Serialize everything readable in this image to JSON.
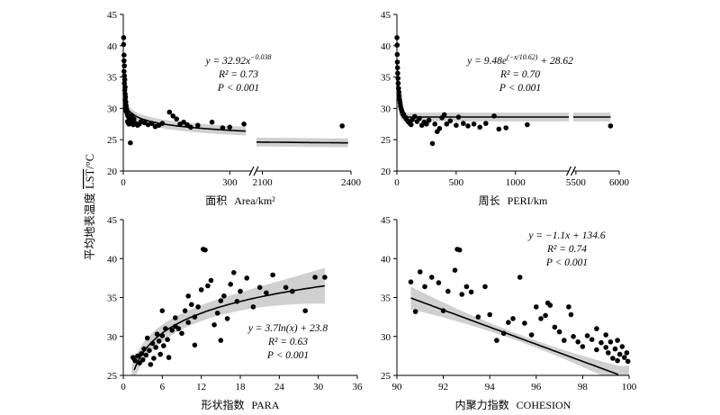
{
  "ylabel_shared": "平均地表温度 LST/°C",
  "ylabel_parts": {
    "cn": "平均地表温度",
    "var": "LST",
    "unit": "/°C"
  },
  "chart_data": [
    {
      "id": "area",
      "type": "scatter",
      "xlabel_cn": "面积",
      "xlabel_en": "Area/km²",
      "xlabel": "面积 Area/km²",
      "broken_x": true,
      "segments": [
        {
          "range": [
            0,
            360
          ],
          "ticks": [
            0,
            300
          ]
        },
        {
          "range": [
            2080,
            2400
          ],
          "ticks": [
            2100,
            2400
          ]
        }
      ],
      "ylim": [
        20,
        45
      ],
      "yticks": [
        20,
        25,
        30,
        35,
        40,
        45
      ],
      "xtick_labels": [
        "0",
        "300",
        "2100",
        "2400"
      ],
      "annotation": [
        "y = 32.92x^−0.038",
        "R² = 0.73",
        "P < 0.001"
      ],
      "fit": {
        "model": "power",
        "a": 32.92,
        "b": -0.038
      },
      "points": [
        [
          1,
          41.3
        ],
        [
          1,
          40.2
        ],
        [
          2,
          38.5
        ],
        [
          2,
          37.6
        ],
        [
          3,
          36.8
        ],
        [
          2,
          35.9
        ],
        [
          3,
          35.2
        ],
        [
          4,
          34.6
        ],
        [
          3,
          34.0
        ],
        [
          5,
          33.4
        ],
        [
          4,
          32.9
        ],
        [
          5,
          32.3
        ],
        [
          6,
          31.8
        ],
        [
          5,
          31.4
        ],
        [
          7,
          31.0
        ],
        [
          6,
          30.7
        ],
        [
          8,
          30.4
        ],
        [
          7,
          30.1
        ],
        [
          9,
          29.9
        ],
        [
          8,
          29.6
        ],
        [
          10,
          29.4
        ],
        [
          11,
          29.2
        ],
        [
          12,
          29.0
        ],
        [
          13,
          28.8
        ],
        [
          15,
          28.6
        ],
        [
          17,
          28.4
        ],
        [
          18,
          28.2
        ],
        [
          20,
          28.0
        ],
        [
          22,
          27.8
        ],
        [
          25,
          27.6
        ],
        [
          28,
          27.4
        ],
        [
          14,
          27.7
        ],
        [
          16,
          27.5
        ],
        [
          12,
          27.9
        ],
        [
          24,
          28.9
        ],
        [
          30,
          28.3
        ],
        [
          35,
          27.6
        ],
        [
          40,
          27.3
        ],
        [
          45,
          27.5
        ],
        [
          50,
          27.9
        ],
        [
          60,
          27.7
        ],
        [
          70,
          27.4
        ],
        [
          80,
          27.6
        ],
        [
          90,
          27.1
        ],
        [
          100,
          27.3
        ],
        [
          110,
          27.6
        ],
        [
          130,
          29.4
        ],
        [
          140,
          28.8
        ],
        [
          150,
          28.3
        ],
        [
          160,
          27.5
        ],
        [
          170,
          27.8
        ],
        [
          180,
          27.4
        ],
        [
          190,
          27.0
        ],
        [
          210,
          27.3
        ],
        [
          250,
          27.8
        ],
        [
          280,
          26.9
        ],
        [
          300,
          27.0
        ],
        [
          340,
          27.5
        ],
        [
          20,
          24.5
        ],
        [
          2370,
          27.2
        ]
      ]
    },
    {
      "id": "peri",
      "type": "scatter",
      "xlabel_cn": "周长",
      "xlabel_en": "PERI/km",
      "xlabel": "周长 PERI/km",
      "broken_x": true,
      "segments": [
        {
          "range": [
            0,
            1450
          ],
          "ticks": [
            0,
            500,
            1000
          ]
        },
        {
          "range": [
            5470,
            6000
          ],
          "ticks": [
            5500,
            6000
          ]
        }
      ],
      "ylim": [
        20,
        45
      ],
      "yticks": [
        20,
        25,
        30,
        35,
        40,
        45
      ],
      "xtick_labels": [
        "0",
        "500",
        "1000",
        "5500",
        "6000"
      ],
      "annotation": [
        "y = 9.48e^(−x/10.62) + 28.62",
        "R² = 0.70",
        "P < 0.001"
      ],
      "fit": {
        "model": "exponential",
        "a": 9.48,
        "b": 10.62,
        "c": 28.62
      },
      "points": [
        [
          1,
          41.3
        ],
        [
          2,
          40.1
        ],
        [
          3,
          38.6
        ],
        [
          4,
          37.4
        ],
        [
          5,
          36.5
        ],
        [
          7,
          35.6
        ],
        [
          9,
          34.8
        ],
        [
          11,
          34.0
        ],
        [
          14,
          33.2
        ],
        [
          17,
          32.6
        ],
        [
          20,
          32.0
        ],
        [
          23,
          31.4
        ],
        [
          27,
          30.9
        ],
        [
          30,
          30.4
        ],
        [
          35,
          30.0
        ],
        [
          40,
          29.7
        ],
        [
          45,
          29.4
        ],
        [
          55,
          29.1
        ],
        [
          60,
          28.8
        ],
        [
          70,
          28.6
        ],
        [
          80,
          28.3
        ],
        [
          90,
          28.0
        ],
        [
          100,
          27.8
        ],
        [
          110,
          27.6
        ],
        [
          120,
          27.4
        ],
        [
          130,
          28.2
        ],
        [
          150,
          28.7
        ],
        [
          170,
          27.9
        ],
        [
          190,
          28.4
        ],
        [
          210,
          27.3
        ],
        [
          230,
          27.8
        ],
        [
          250,
          27.5
        ],
        [
          270,
          28.1
        ],
        [
          300,
          24.4
        ],
        [
          320,
          27.5
        ],
        [
          340,
          26.3
        ],
        [
          360,
          26.8
        ],
        [
          380,
          28.5
        ],
        [
          400,
          29.0
        ],
        [
          420,
          27.5
        ],
        [
          450,
          28.0
        ],
        [
          500,
          27.3
        ],
        [
          520,
          28.6
        ],
        [
          560,
          27.6
        ],
        [
          600,
          27.2
        ],
        [
          650,
          27.5
        ],
        [
          700,
          27.0
        ],
        [
          750,
          27.6
        ],
        [
          820,
          28.8
        ],
        [
          860,
          26.7
        ],
        [
          920,
          26.9
        ],
        [
          1100,
          27.4
        ],
        [
          5900,
          27.2
        ]
      ]
    },
    {
      "id": "para",
      "type": "scatter",
      "xlabel_cn": "形状指数",
      "xlabel_en": "PARA",
      "xlabel": "形状指数 PARA",
      "xlim": [
        0,
        36
      ],
      "xticks": [
        0,
        6,
        12,
        18,
        24,
        30,
        36
      ],
      "ylim": [
        25,
        45
      ],
      "yticks": [
        25,
        30,
        35,
        40,
        45
      ],
      "annotation": [
        "y = 3.7ln(x) + 23.8",
        "R² = 0.63",
        "P < 0.001"
      ],
      "fit": {
        "model": "log",
        "a": 3.7,
        "b": 23.8
      },
      "points": [
        [
          1.5,
          27.3
        ],
        [
          1.8,
          26.9
        ],
        [
          2.2,
          27.5
        ],
        [
          2.5,
          26.6
        ],
        [
          2.8,
          27.8
        ],
        [
          3.0,
          27.0
        ],
        [
          3.2,
          28.4
        ],
        [
          3.5,
          27.6
        ],
        [
          3.7,
          29.8
        ],
        [
          4.0,
          28.2
        ],
        [
          4.2,
          26.4
        ],
        [
          4.5,
          29.1
        ],
        [
          4.7,
          27.2
        ],
        [
          5.0,
          28.6
        ],
        [
          5.2,
          30.3
        ],
        [
          5.5,
          29.4
        ],
        [
          5.7,
          27.7
        ],
        [
          6.0,
          30.1
        ],
        [
          6.2,
          28.8
        ],
        [
          6.5,
          31.0
        ],
        [
          6.8,
          29.6
        ],
        [
          7.0,
          27.3
        ],
        [
          7.5,
          30.8
        ],
        [
          8.0,
          32.4
        ],
        [
          8.5,
          31.0
        ],
        [
          9.0,
          30.4
        ],
        [
          9.5,
          33.3
        ],
        [
          10.0,
          31.8
        ],
        [
          10.5,
          34.1
        ],
        [
          11.0,
          32.5
        ],
        [
          11.5,
          33.8
        ],
        [
          12.0,
          36.0
        ],
        [
          12.3,
          41.2
        ],
        [
          12.6,
          41.1
        ],
        [
          13.0,
          36.5
        ],
        [
          13.5,
          37.2
        ],
        [
          14.0,
          31.5
        ],
        [
          14.5,
          33.0
        ],
        [
          15.0,
          34.6
        ],
        [
          15.5,
          35.2
        ],
        [
          16.0,
          32.3
        ],
        [
          16.5,
          36.7
        ],
        [
          17.0,
          38.2
        ],
        [
          17.5,
          34.5
        ],
        [
          18.0,
          35.8
        ],
        [
          19.0,
          37.5
        ],
        [
          20.0,
          33.8
        ],
        [
          21.0,
          36.3
        ],
        [
          22.0,
          35.6
        ],
        [
          23.0,
          37.9
        ],
        [
          25.0,
          36.3
        ],
        [
          26.0,
          35.8
        ],
        [
          28.0,
          33.3
        ],
        [
          29.5,
          37.6
        ],
        [
          31.0,
          37.6
        ],
        [
          6.0,
          33.3
        ],
        [
          8.0,
          31.3
        ],
        [
          10.0,
          35.2
        ],
        [
          11.0,
          28.9
        ],
        [
          15.0,
          29.5
        ]
      ]
    },
    {
      "id": "cohesion",
      "type": "scatter",
      "xlabel_cn": "内聚力指数",
      "xlabel_en": "COHESION",
      "xlabel": "内聚力指数 COHESION",
      "xlim": [
        90,
        100
      ],
      "xticks": [
        90,
        92,
        94,
        96,
        98,
        100
      ],
      "ylim": [
        25,
        45
      ],
      "yticks": [
        25,
        30,
        35,
        40,
        45
      ],
      "annotation": [
        "y = −1.1x + 134.6",
        "R² = 0.74",
        "P < 0.001"
      ],
      "fit": {
        "model": "linear",
        "a": -1.1,
        "b": 134.6
      },
      "points": [
        [
          90.6,
          37.0
        ],
        [
          90.8,
          33.2
        ],
        [
          91.0,
          38.3
        ],
        [
          91.2,
          36.4
        ],
        [
          91.5,
          37.6
        ],
        [
          91.8,
          36.9
        ],
        [
          92.0,
          33.3
        ],
        [
          92.2,
          35.8
        ],
        [
          92.5,
          38.5
        ],
        [
          92.6,
          41.2
        ],
        [
          92.7,
          41.1
        ],
        [
          92.8,
          35.4
        ],
        [
          93.0,
          36.4
        ],
        [
          93.2,
          35.7
        ],
        [
          93.5,
          32.5
        ],
        [
          93.8,
          36.4
        ],
        [
          94.0,
          32.8
        ],
        [
          94.3,
          29.5
        ],
        [
          94.6,
          30.4
        ],
        [
          94.8,
          31.8
        ],
        [
          95.0,
          32.3
        ],
        [
          95.3,
          37.6
        ],
        [
          95.5,
          31.7
        ],
        [
          95.8,
          30.2
        ],
        [
          96.0,
          33.8
        ],
        [
          96.2,
          32.3
        ],
        [
          96.4,
          32.7
        ],
        [
          96.6,
          34.0
        ],
        [
          96.8,
          31.2
        ],
        [
          97.0,
          30.6
        ],
        [
          97.2,
          29.5
        ],
        [
          97.4,
          33.8
        ],
        [
          97.6,
          30.0
        ],
        [
          97.8,
          29.3
        ],
        [
          98.0,
          28.7
        ],
        [
          98.2,
          30.1
        ],
        [
          98.4,
          29.6
        ],
        [
          98.6,
          28.3
        ],
        [
          98.8,
          29.2
        ],
        [
          99.0,
          28.6
        ],
        [
          99.1,
          27.9
        ],
        [
          99.2,
          29.3
        ],
        [
          99.3,
          27.2
        ],
        [
          99.4,
          28.4
        ],
        [
          99.5,
          26.9
        ],
        [
          99.6,
          27.7
        ],
        [
          99.7,
          28.7
        ],
        [
          99.8,
          27.3
        ],
        [
          99.9,
          27.9
        ],
        [
          99.95,
          26.8
        ],
        [
          99.0,
          30.2
        ],
        [
          98.6,
          31.0
        ],
        [
          97.5,
          32.8
        ],
        [
          96.5,
          34.3
        ],
        [
          99.5,
          29.5
        ]
      ]
    }
  ]
}
